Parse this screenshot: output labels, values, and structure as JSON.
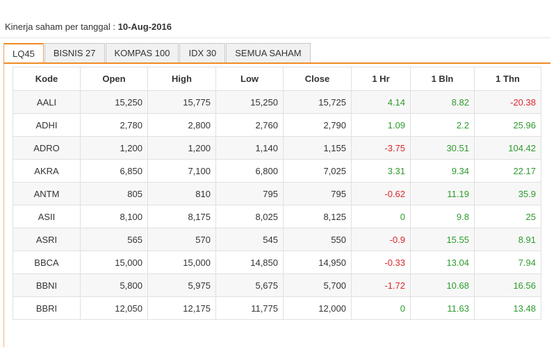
{
  "header": {
    "label": "Kinerja saham per tanggal :",
    "date": "10-Aug-2016"
  },
  "tabs": [
    {
      "label": "LQ45",
      "active": true
    },
    {
      "label": "BISNIS 27",
      "active": false
    },
    {
      "label": "KOMPAS 100",
      "active": false
    },
    {
      "label": "IDX 30",
      "active": false
    },
    {
      "label": "SEMUA SAHAM",
      "active": false
    }
  ],
  "colors": {
    "accent": "#f08a24",
    "positive": "#2e9b2e",
    "negative": "#d9262c"
  },
  "table": {
    "columns": [
      "Kode",
      "Open",
      "High",
      "Low",
      "Close",
      "1 Hr",
      "1 Bln",
      "1 Thn"
    ],
    "rows": [
      [
        "AALI",
        "15,250",
        "15,775",
        "15,250",
        "15,725",
        "4.14",
        "8.82",
        "-20.38"
      ],
      [
        "ADHI",
        "2,780",
        "2,800",
        "2,760",
        "2,790",
        "1.09",
        "2.2",
        "25.96"
      ],
      [
        "ADRO",
        "1,200",
        "1,200",
        "1,140",
        "1,155",
        "-3.75",
        "30.51",
        "104.42"
      ],
      [
        "AKRA",
        "6,850",
        "7,100",
        "6,800",
        "7,025",
        "3.31",
        "9.34",
        "22.17"
      ],
      [
        "ANTM",
        "805",
        "810",
        "795",
        "795",
        "-0.62",
        "11.19",
        "35.9"
      ],
      [
        "ASII",
        "8,100",
        "8,175",
        "8,025",
        "8,125",
        "0",
        "9.8",
        "25"
      ],
      [
        "ASRI",
        "565",
        "570",
        "545",
        "550",
        "-0.9",
        "15.55",
        "8.91"
      ],
      [
        "BBCA",
        "15,000",
        "15,000",
        "14,850",
        "14,950",
        "-0.33",
        "13.04",
        "7.94"
      ],
      [
        "BBNI",
        "5,800",
        "5,975",
        "5,675",
        "5,700",
        "-1.72",
        "10.68",
        "16.56"
      ],
      [
        "BBRI",
        "12,050",
        "12,175",
        "11,775",
        "12,000",
        "0",
        "11.63",
        "13.48"
      ]
    ]
  }
}
